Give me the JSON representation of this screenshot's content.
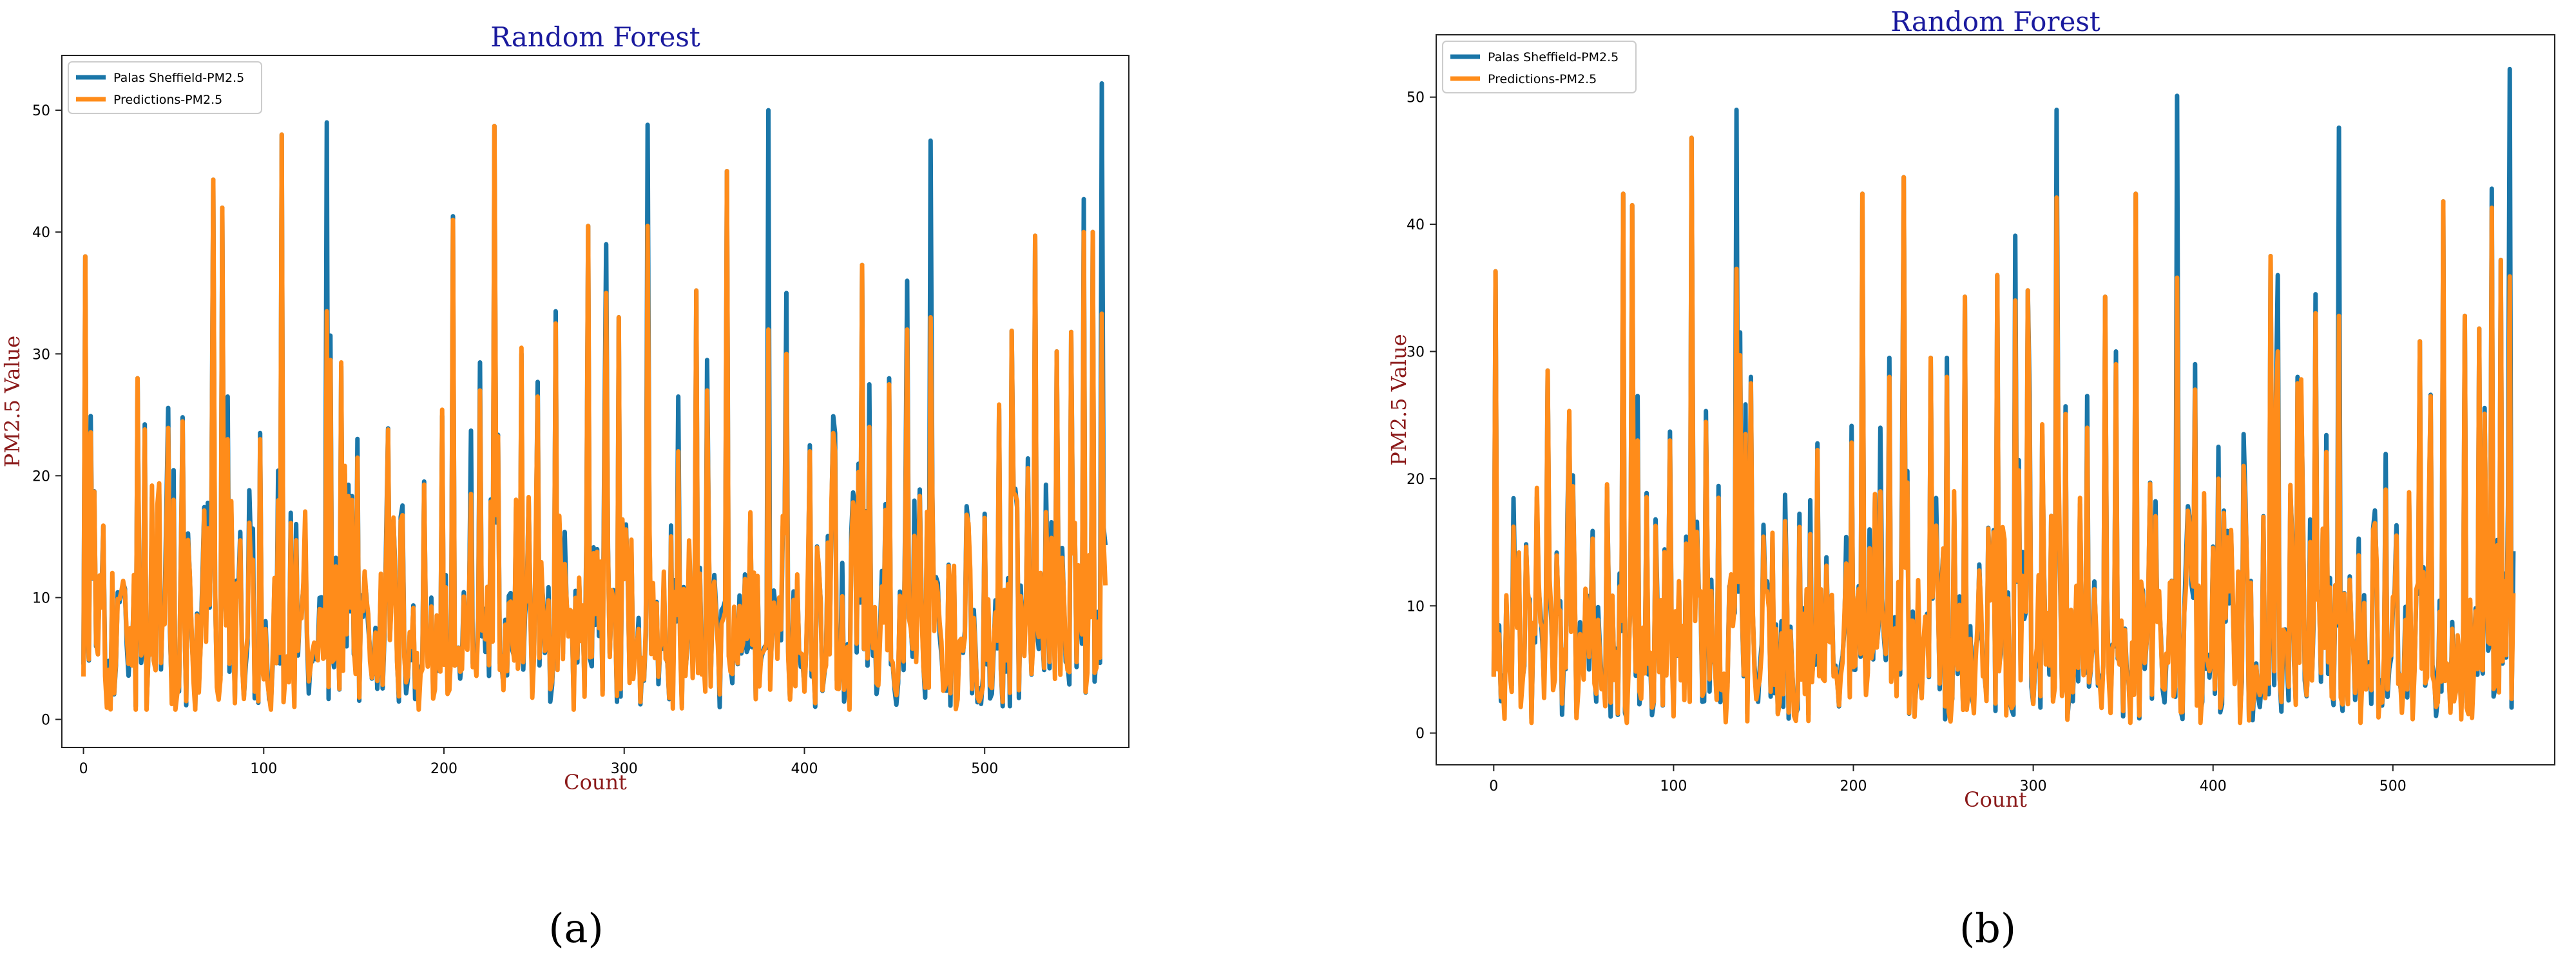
{
  "figure": {
    "panels": [
      {
        "id": "a",
        "caption": "(a)"
      },
      {
        "id": "b",
        "caption": "(b)"
      }
    ]
  },
  "colors": {
    "actual": "#1a76a8",
    "prediction": "#ff8c1a",
    "title": "#1a1a9e",
    "axis_label": "#8b1a1a"
  },
  "chart_data": [
    {
      "type": "line",
      "panel": "a",
      "title": "Random Forest",
      "xlabel": "Count",
      "ylabel": "PM2.5 Value",
      "xlim": [
        -12,
        580
      ],
      "ylim": [
        -2.3,
        54.5
      ],
      "xticks": [
        0,
        100,
        200,
        300,
        400,
        500
      ],
      "yticks": [
        0,
        10,
        20,
        30,
        40,
        50
      ],
      "grid": false,
      "legend": "top-left",
      "n_points": 568,
      "actual_peaks": [
        [
          1,
          38
        ],
        [
          30,
          28
        ],
        [
          72,
          44.3
        ],
        [
          77,
          42
        ],
        [
          80,
          26.5
        ],
        [
          98,
          23.5
        ],
        [
          110,
          48
        ],
        [
          135,
          49
        ],
        [
          137,
          31.5
        ],
        [
          143,
          29
        ],
        [
          205,
          41.3
        ],
        [
          215,
          23.7
        ],
        [
          220,
          29.3
        ],
        [
          228,
          48.7
        ],
        [
          243,
          30
        ],
        [
          252,
          27.7
        ],
        [
          262,
          33.5
        ],
        [
          280,
          40.5
        ],
        [
          290,
          39
        ],
        [
          297,
          33
        ],
        [
          313,
          48.8
        ],
        [
          330,
          26.5
        ],
        [
          340,
          35.2
        ],
        [
          346,
          29.5
        ],
        [
          357,
          45
        ],
        [
          380,
          50
        ],
        [
          390,
          35
        ],
        [
          403,
          22.5
        ],
        [
          417,
          23.5
        ],
        [
          432,
          37.3
        ],
        [
          436,
          27.5
        ],
        [
          447,
          28
        ],
        [
          457,
          36
        ],
        [
          470,
          47.5
        ],
        [
          490,
          17.5
        ],
        [
          515,
          31.9
        ],
        [
          528,
          39.7
        ],
        [
          540,
          30.2
        ],
        [
          548,
          31.8
        ],
        [
          555,
          42.7
        ],
        [
          560,
          40
        ],
        [
          565,
          52.2
        ]
      ],
      "prediction_peaks": [
        [
          1,
          38
        ],
        [
          30,
          28
        ],
        [
          72,
          44.3
        ],
        [
          77,
          42
        ],
        [
          80,
          23
        ],
        [
          98,
          23
        ],
        [
          110,
          48
        ],
        [
          135,
          33.5
        ],
        [
          137,
          29.5
        ],
        [
          143,
          29.3
        ],
        [
          205,
          41
        ],
        [
          215,
          18.5
        ],
        [
          220,
          27
        ],
        [
          228,
          48.7
        ],
        [
          243,
          30.5
        ],
        [
          252,
          26.5
        ],
        [
          262,
          32.5
        ],
        [
          280,
          40.5
        ],
        [
          290,
          35
        ],
        [
          297,
          33
        ],
        [
          313,
          40.5
        ],
        [
          330,
          22
        ],
        [
          340,
          35.2
        ],
        [
          346,
          27
        ],
        [
          357,
          45
        ],
        [
          380,
          32
        ],
        [
          390,
          30
        ],
        [
          403,
          22
        ],
        [
          417,
          22
        ],
        [
          432,
          37.3
        ],
        [
          436,
          24
        ],
        [
          447,
          27.5
        ],
        [
          457,
          32
        ],
        [
          470,
          33
        ],
        [
          490,
          16.8
        ],
        [
          515,
          31.9
        ],
        [
          528,
          39.7
        ],
        [
          540,
          30.2
        ],
        [
          548,
          31.8
        ],
        [
          555,
          40
        ],
        [
          560,
          40
        ],
        [
          565,
          33.3
        ]
      ],
      "series": [
        {
          "name": "Palas Sheffield-PM2.5",
          "color": "#1a76a8"
        },
        {
          "name": "Predictions-PM2.5",
          "color": "#ff8c1a"
        }
      ]
    },
    {
      "type": "line",
      "panel": "b",
      "title": "Random Forest",
      "xlabel": "Count",
      "ylabel": "PM2.5 Value",
      "xlim": [
        -32,
        590
      ],
      "ylim": [
        -2.5,
        54.9
      ],
      "xticks": [
        0,
        100,
        200,
        300,
        400,
        500
      ],
      "yticks": [
        0,
        10,
        20,
        30,
        40,
        50
      ],
      "grid": false,
      "legend": "top-left",
      "n_points": 568,
      "actual_peaks": [
        [
          1,
          36.3
        ],
        [
          30,
          28.5
        ],
        [
          72,
          42.4
        ],
        [
          77,
          41.5
        ],
        [
          80,
          26.5
        ],
        [
          98,
          23.7
        ],
        [
          110,
          46.8
        ],
        [
          135,
          49
        ],
        [
          137,
          31.5
        ],
        [
          143,
          28
        ],
        [
          205,
          42.4
        ],
        [
          215,
          24
        ],
        [
          220,
          29.5
        ],
        [
          228,
          43.7
        ],
        [
          243,
          29.5
        ],
        [
          252,
          29.5
        ],
        [
          262,
          34.3
        ],
        [
          280,
          36
        ],
        [
          290,
          39.1
        ],
        [
          297,
          34.8
        ],
        [
          313,
          49
        ],
        [
          330,
          26.5
        ],
        [
          340,
          34.3
        ],
        [
          346,
          30
        ],
        [
          357,
          42.4
        ],
        [
          380,
          50.1
        ],
        [
          390,
          29
        ],
        [
          403,
          22.5
        ],
        [
          417,
          23.5
        ],
        [
          432,
          37.5
        ],
        [
          436,
          36
        ],
        [
          447,
          28
        ],
        [
          457,
          34.5
        ],
        [
          470,
          47.6
        ],
        [
          490,
          17.5
        ],
        [
          515,
          30.8
        ],
        [
          528,
          41.8
        ],
        [
          540,
          32.8
        ],
        [
          548,
          31.8
        ],
        [
          555,
          42.8
        ],
        [
          560,
          37.2
        ],
        [
          565,
          52.2
        ]
      ],
      "prediction_peaks": [
        [
          1,
          36.3
        ],
        [
          30,
          28.5
        ],
        [
          72,
          42.4
        ],
        [
          77,
          41.5
        ],
        [
          80,
          23
        ],
        [
          98,
          23
        ],
        [
          110,
          46.8
        ],
        [
          135,
          36.5
        ],
        [
          137,
          29.7
        ],
        [
          143,
          27.5
        ],
        [
          205,
          42.4
        ],
        [
          215,
          19
        ],
        [
          220,
          28
        ],
        [
          228,
          43.7
        ],
        [
          243,
          29.5
        ],
        [
          252,
          28
        ],
        [
          262,
          34.3
        ],
        [
          280,
          36
        ],
        [
          290,
          34
        ],
        [
          297,
          34.8
        ],
        [
          313,
          42.1
        ],
        [
          330,
          24
        ],
        [
          340,
          34.3
        ],
        [
          346,
          29
        ],
        [
          357,
          42.4
        ],
        [
          380,
          35.8
        ],
        [
          390,
          27
        ],
        [
          403,
          20
        ],
        [
          417,
          21
        ],
        [
          432,
          37.5
        ],
        [
          436,
          30
        ],
        [
          447,
          27.5
        ],
        [
          457,
          33
        ],
        [
          470,
          32.8
        ],
        [
          490,
          16.5
        ],
        [
          515,
          30.8
        ],
        [
          528,
          41.8
        ],
        [
          540,
          32.8
        ],
        [
          548,
          31.8
        ],
        [
          555,
          41.3
        ],
        [
          560,
          37.2
        ],
        [
          565,
          35.9
        ]
      ],
      "series": [
        {
          "name": "Palas Sheffield-PM2.5",
          "color": "#1a76a8"
        },
        {
          "name": "Predictions-PM2.5",
          "color": "#ff8c1a"
        }
      ]
    }
  ]
}
